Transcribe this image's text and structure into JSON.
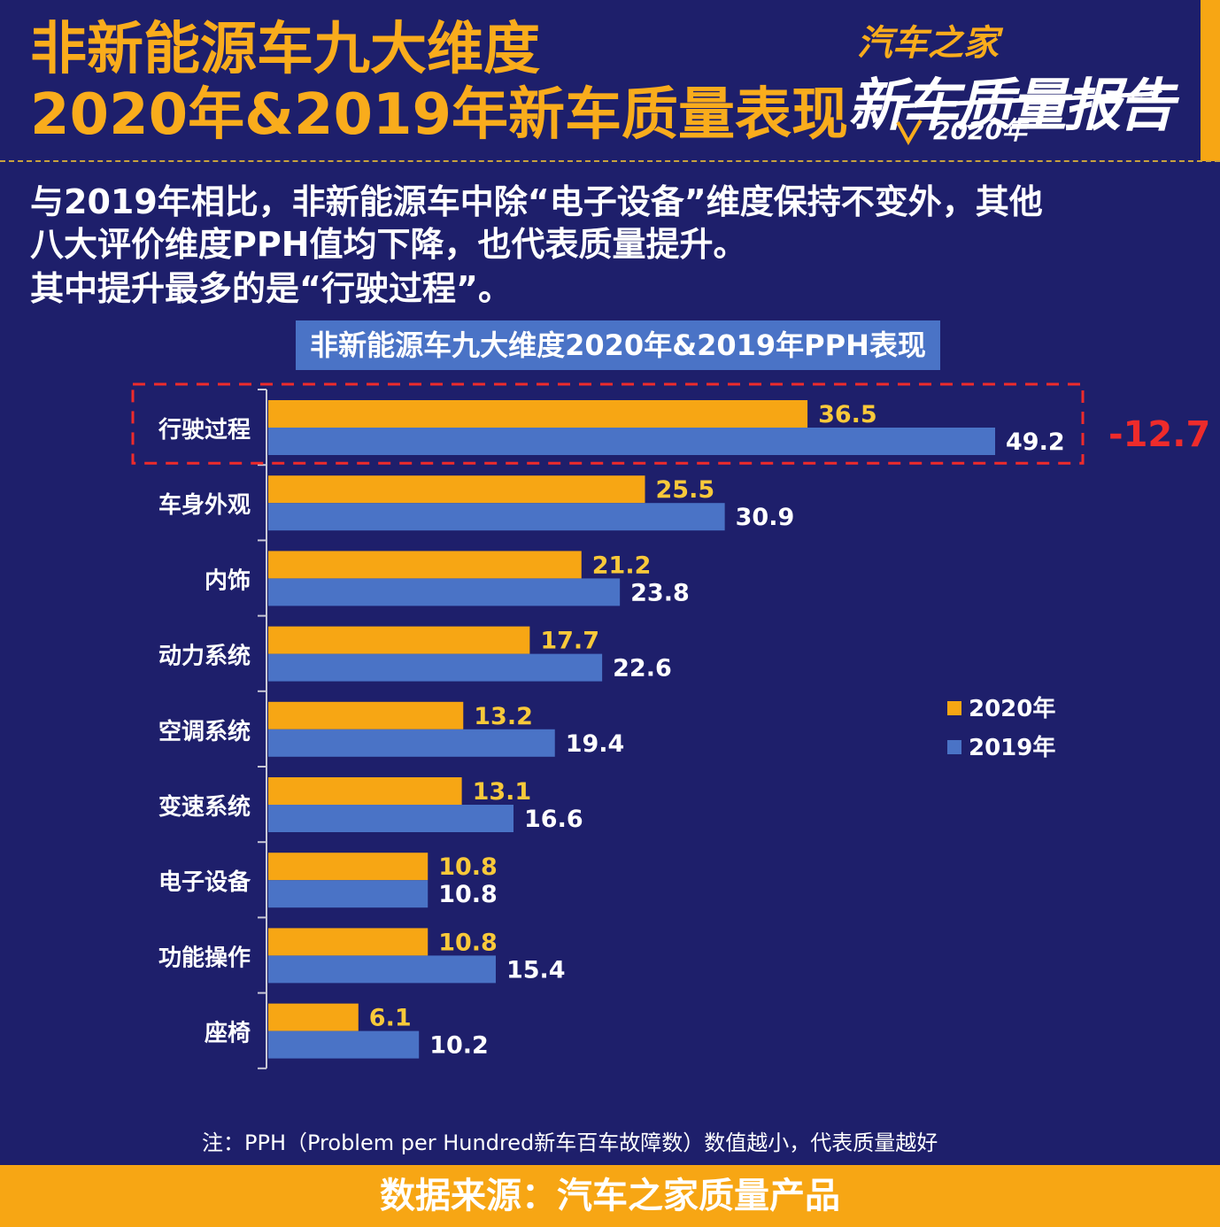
{
  "header": {
    "title_line1": "非新能源车九大维度",
    "title_line2": "2020年&2019年新车质量表现",
    "logo": {
      "brand": "汽车之家",
      "name": "新车质量报告",
      "year": "2020年"
    }
  },
  "intro": {
    "line1": "与2019年相比，非新能源车中除“电子设备”维度保持不变外，其他",
    "line2": "八大评价维度PPH值均下降，也代表质量提升。",
    "line3": "其中提升最多的是“行驶过程”。"
  },
  "chart_data": {
    "type": "bar",
    "orientation": "horizontal",
    "title": "非新能源车九大维度2020年&2019年PPH表现",
    "categories": [
      "行驶过程",
      "车身外观",
      "内饰",
      "动力系统",
      "空调系统",
      "变速系统",
      "电子设备",
      "功能操作",
      "座椅"
    ],
    "series": [
      {
        "name": "2020年",
        "color": "#f7a614",
        "values": [
          36.5,
          25.5,
          21.2,
          17.7,
          13.2,
          13.1,
          10.8,
          10.8,
          6.1
        ]
      },
      {
        "name": "2019年",
        "color": "#4a73c6",
        "values": [
          49.2,
          30.9,
          23.8,
          22.6,
          19.4,
          16.6,
          10.8,
          15.4,
          10.2
        ]
      }
    ],
    "xlim": [
      0,
      49.2
    ],
    "legend": "right",
    "highlight": {
      "category": "行驶过程",
      "delta_label": "-12.7",
      "color": "#ee2b2b"
    }
  },
  "note": "注：PPH（Problem per Hundred新车百车故障数）数值越小，代表质量越好",
  "footer": "数据来源：汽车之家质量产品"
}
